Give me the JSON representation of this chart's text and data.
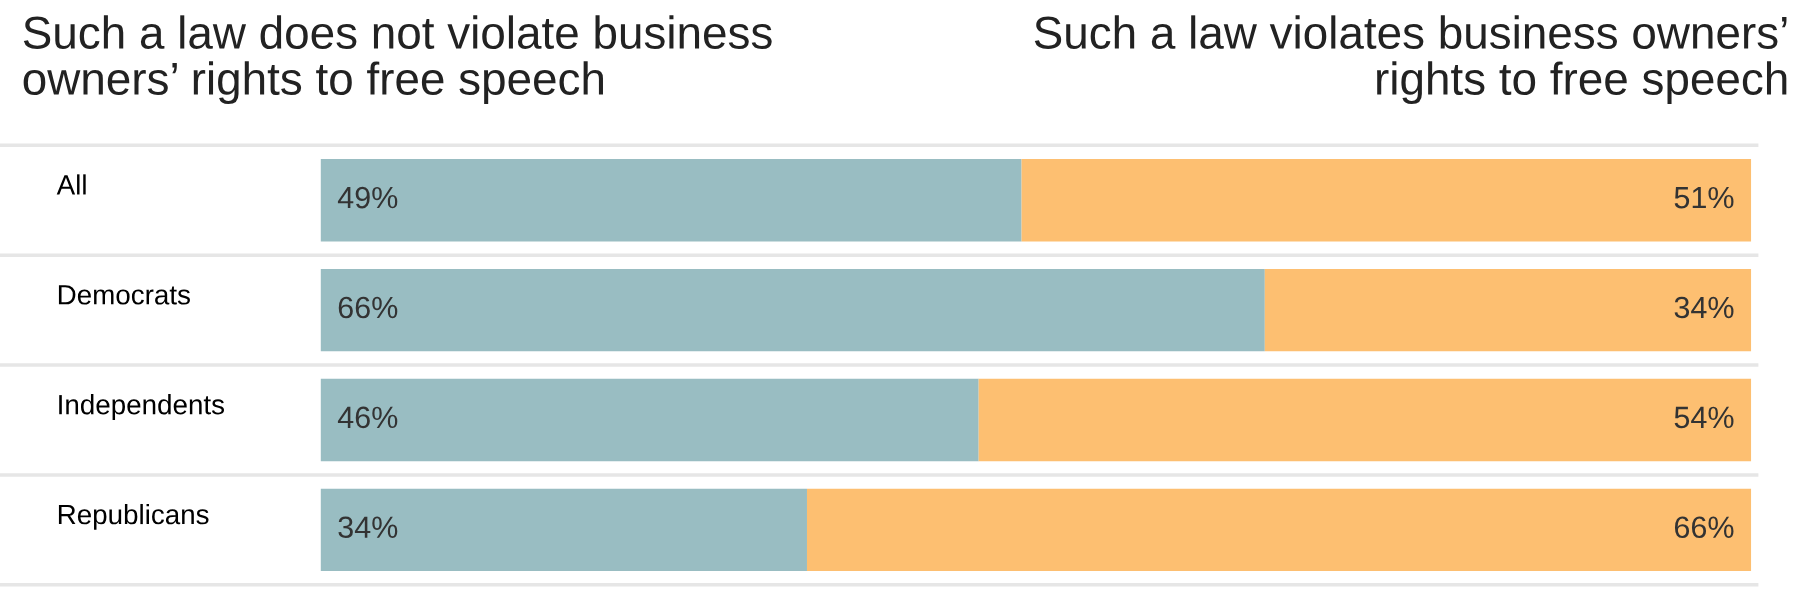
{
  "chart_data": {
    "type": "bar",
    "orientation": "horizontal",
    "stacked": true,
    "legend": false,
    "categories": [
      "All",
      "Democrats",
      "Independents",
      "Republicans"
    ],
    "series": [
      {
        "name": "Such a law does not violate business owners’ rights to free speech",
        "color": "#99bdc2",
        "values": [
          49,
          66,
          46,
          34
        ],
        "value_labels": [
          "49%",
          "66%",
          "46%",
          "34%"
        ]
      },
      {
        "name": "Such a law violates business owners’ rights to free speech",
        "color": "#fdbf71",
        "values": [
          51,
          34,
          54,
          66
        ],
        "value_labels": [
          "51%",
          "34%",
          "54%",
          "66%"
        ]
      }
    ]
  }
}
